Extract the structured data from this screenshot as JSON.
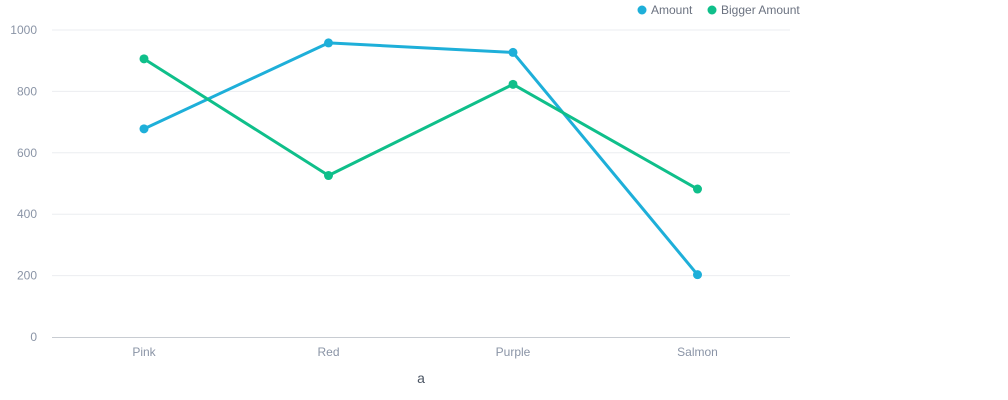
{
  "chart_data": {
    "type": "line",
    "title": "",
    "xlabel": "a",
    "ylabel": "",
    "categories": [
      "Pink",
      "Red",
      "Purple",
      "Salmon"
    ],
    "ylim": [
      0,
      1000
    ],
    "yticks": [
      "0",
      "200",
      "400",
      "600",
      "800",
      "1000"
    ],
    "grid": true,
    "legend_position": "top-right",
    "series": [
      {
        "name": "Amount",
        "color": "#1eafd9",
        "values": [
          678,
          958,
          927,
          203
        ]
      },
      {
        "name": "Bigger Amount",
        "color": "#0fbf8a",
        "values": [
          906,
          526,
          823,
          482
        ]
      }
    ]
  }
}
